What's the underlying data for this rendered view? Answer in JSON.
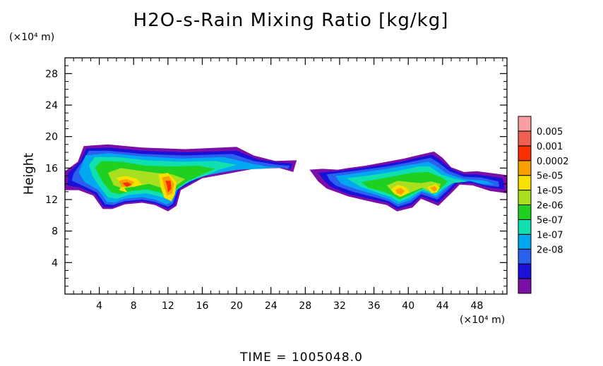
{
  "chart_data": {
    "type": "heatmap",
    "title": "H2O-s-Rain Mixing Ratio [kg/kg]",
    "xlabel": "",
    "ylabel": "Height",
    "x_unit": "(×10⁴ m)",
    "y_unit": "(×10⁴ m)",
    "xlim": [
      0,
      51.5
    ],
    "ylim": [
      0,
      30
    ],
    "x_ticks": [
      "4",
      "8",
      "12",
      "16",
      "20",
      "24",
      "28",
      "32",
      "36",
      "40",
      "44",
      "48"
    ],
    "y_ticks": [
      "4",
      "8",
      "12",
      "16",
      "20",
      "24",
      "28"
    ],
    "colorbar": {
      "labels": [
        "0.005",
        "0.001",
        "0.0002",
        "5e-05",
        "1e-05",
        "2e-06",
        "5e-07",
        "1e-07",
        "2e-08"
      ],
      "colors": [
        "#7b0fa8",
        "#1a10d8",
        "#2a60f0",
        "#00a8f0",
        "#10e0b0",
        "#20d020",
        "#a8e020",
        "#f8e000",
        "#f8a000",
        "#f83000",
        "#f06050",
        "#f8a0a0"
      ]
    },
    "regions": [
      {
        "name": "west cloud",
        "x_range": [
          0,
          27
        ],
        "y_range": [
          10.5,
          19
        ],
        "peak_value": "0.0002"
      },
      {
        "name": "east cloud",
        "x_range": [
          31,
          51.5
        ],
        "y_range": [
          10.5,
          18
        ],
        "peak_value": "0.0002"
      }
    ],
    "footer": "TIME  =  1005048.0"
  }
}
